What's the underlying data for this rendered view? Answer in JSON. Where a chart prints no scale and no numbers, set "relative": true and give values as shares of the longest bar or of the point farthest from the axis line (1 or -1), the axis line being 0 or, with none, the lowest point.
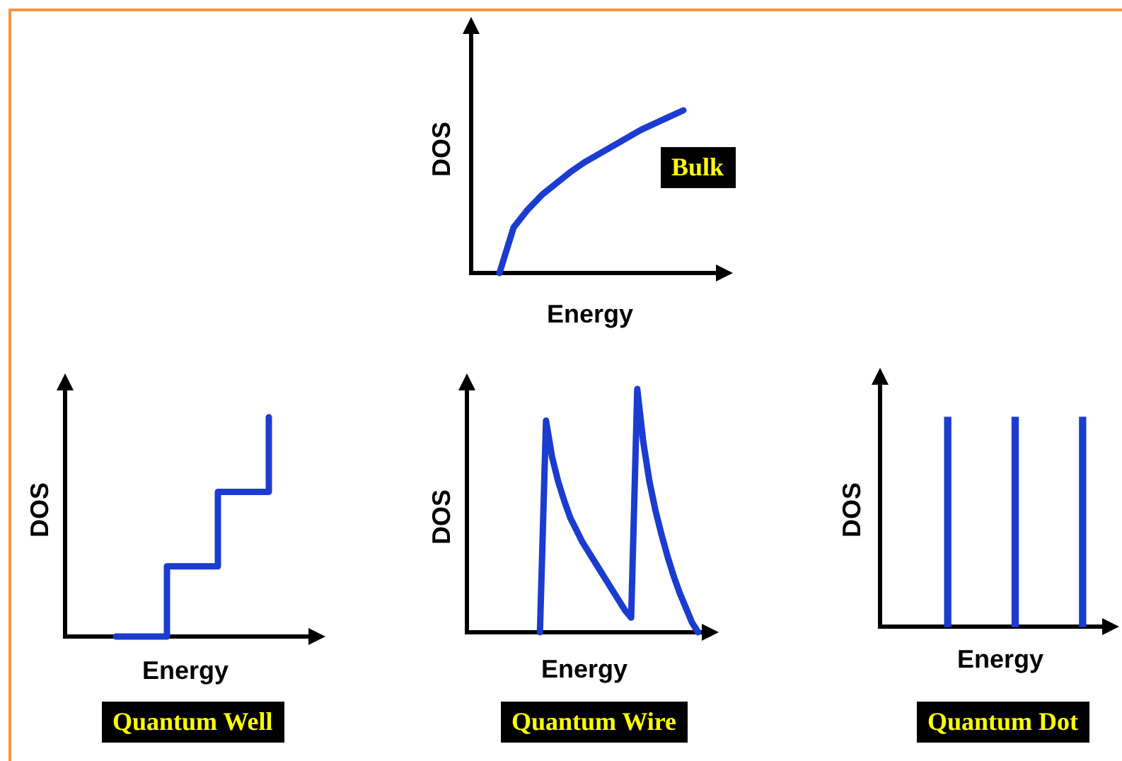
{
  "chart_data": [
    {
      "type": "line",
      "title": "Bulk",
      "xlabel": "Energy",
      "ylabel": "DOS",
      "relative": true,
      "marker": "none",
      "categories": [
        null,
        null,
        null,
        null,
        null,
        null,
        null,
        null,
        null,
        null,
        null,
        null,
        null,
        null,
        null,
        null,
        null,
        null,
        null
      ],
      "series": [
        {
          "color": "#1a3cd0",
          "values": [
            null,
            null,
            0,
            0.28,
            0.39,
            0.48,
            0.55,
            0.62,
            0.68,
            0.73,
            0.78,
            0.83,
            0.88,
            0.92,
            0.96,
            1,
            null,
            null,
            null
          ]
        }
      ]
    },
    {
      "type": "step",
      "title": "Quantum Well",
      "xlabel": "Energy",
      "ylabel": "DOS",
      "relative": true,
      "marker": "none",
      "categories": [
        null,
        null,
        null,
        null,
        null,
        null
      ],
      "series": [
        {
          "color": "#1a3cd0",
          "values": [
            null,
            0,
            0.32,
            0.66,
            1,
            null
          ]
        }
      ]
    },
    {
      "type": "line",
      "title": "Quantum Wire",
      "xlabel": "Energy",
      "ylabel": "DOS",
      "relative": true,
      "marker": "none",
      "categories": [
        null,
        null,
        null,
        null,
        null,
        null,
        null,
        null,
        null,
        null,
        null,
        null,
        null,
        null,
        null,
        null,
        null,
        null,
        null,
        null,
        null,
        null,
        null,
        null,
        null,
        null,
        null,
        null,
        null,
        null,
        null,
        null,
        null,
        null,
        null,
        null,
        null,
        null,
        null,
        null,
        null
      ],
      "series": [
        {
          "color": "#1a3cd0",
          "values": [
            null,
            null,
            null,
            null,
            null,
            null,
            null,
            null,
            null,
            null,
            null,
            null,
            0,
            0.87,
            0.72,
            0.62,
            0.54,
            0.47,
            0.42,
            0.37,
            0.33,
            0.29,
            0.25,
            0.21,
            0.17,
            0.13,
            0.09,
            0.06,
            1,
            0.78,
            0.62,
            0.5,
            0.4,
            0.31,
            0.23,
            0.16,
            0.1,
            0.04,
            0,
            null,
            null
          ]
        }
      ]
    },
    {
      "type": "bar",
      "title": "Quantum Dot",
      "xlabel": "Energy",
      "ylabel": "DOS",
      "relative": true,
      "categories": [
        null,
        null,
        null
      ],
      "series": [
        {
          "color": "#1a3cd0",
          "values": [
            1,
            1,
            1
          ]
        }
      ]
    }
  ]
}
